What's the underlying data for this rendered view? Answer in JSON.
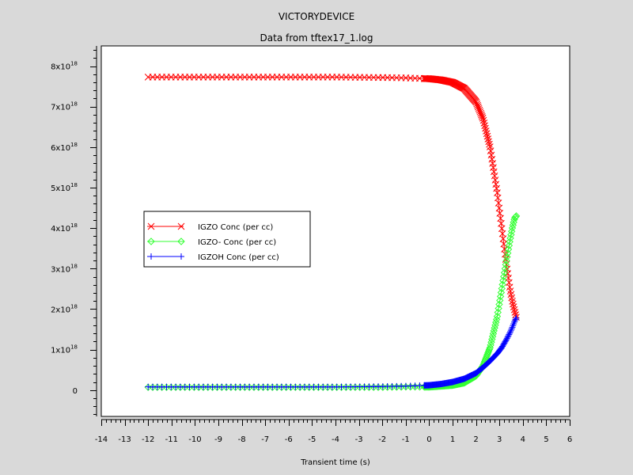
{
  "chart_data": {
    "type": "line",
    "title": "VICTORYDEVICE",
    "subtitle": "Data from tftex17_1.log",
    "xlabel": "Transient time (s)",
    "ylabel": "",
    "xlim": [
      -14,
      6
    ],
    "ylim": [
      -6.5e+17,
      8.5e+18
    ],
    "grid": false,
    "legend_position": "center-left",
    "x_ticks": [
      "-14",
      "-13",
      "-12",
      "-11",
      "-10",
      "-9",
      "-8",
      "-7",
      "-6",
      "-5",
      "-4",
      "-3",
      "-2",
      "-1",
      "0",
      "1",
      "2",
      "3",
      "4",
      "5",
      "6"
    ],
    "y_ticks": [
      {
        "base": "0",
        "exp": ""
      },
      {
        "base": "1x10",
        "exp": "18"
      },
      {
        "base": "2x10",
        "exp": "18"
      },
      {
        "base": "3x10",
        "exp": "18"
      },
      {
        "base": "4x10",
        "exp": "18"
      },
      {
        "base": "5x10",
        "exp": "18"
      },
      {
        "base": "6x10",
        "exp": "18"
      },
      {
        "base": "7x10",
        "exp": "18"
      },
      {
        "base": "8x10",
        "exp": "18"
      }
    ],
    "series": [
      {
        "name": "IGZO Conc (per cc)",
        "color": "#ff0000",
        "marker": "x",
        "x": [
          -12,
          -10,
          -8,
          -6,
          -4,
          -2,
          -1,
          0,
          0.5,
          1,
          1.5,
          2,
          2.3,
          2.6,
          2.9,
          3.1,
          3.3,
          3.45,
          3.55,
          3.65,
          3.72
        ],
        "y": [
          7.73e+18,
          7.73e+18,
          7.73e+18,
          7.73e+18,
          7.73e+18,
          7.72e+18,
          7.71e+18,
          7.69e+18,
          7.66e+18,
          7.6e+18,
          7.45e+18,
          7.12e+18,
          6.7e+18,
          6e+18,
          4.9e+18,
          4e+18,
          3.1e+18,
          2.5e+18,
          2.2e+18,
          1.95e+18,
          1.8e+18
        ]
      },
      {
        "name": "IGZO- Conc (per cc)",
        "color": "#33ff33",
        "marker": "diamond",
        "x": [
          -12,
          -10,
          -8,
          -6,
          -4,
          -2,
          -1,
          0,
          0.5,
          1,
          1.5,
          2,
          2.3,
          2.6,
          2.9,
          3.1,
          3.3,
          3.45,
          3.55,
          3.65,
          3.72
        ],
        "y": [
          7e+16,
          7e+16,
          7e+16,
          7e+16,
          7e+16,
          7e+16,
          8e+16,
          8e+16,
          1e+17,
          1.2e+17,
          1.8e+17,
          3.5e+17,
          6e+17,
          1.05e+18,
          1.8e+18,
          2.5e+18,
          3.2e+18,
          3.7e+18,
          4e+18,
          4.25e+18,
          4.3e+18
        ]
      },
      {
        "name": "IGZOH Conc (per cc)",
        "color": "#0000ff",
        "marker": "plus",
        "x": [
          -12,
          -10,
          -8,
          -6,
          -4,
          -2,
          -1,
          0,
          0.5,
          1,
          1.5,
          2,
          2.3,
          2.6,
          2.9,
          3.1,
          3.3,
          3.45,
          3.55,
          3.65,
          3.72
        ],
        "y": [
          8e+16,
          8e+16,
          8e+16,
          8e+16,
          8e+16,
          9e+16,
          1e+17,
          1.2e+17,
          1.5e+17,
          2e+17,
          2.8e+17,
          4.2e+17,
          5.6e+17,
          7.2e+17,
          9e+17,
          1.05e+18,
          1.25e+18,
          1.42e+18,
          1.55e+18,
          1.7e+18,
          1.78e+18
        ]
      }
    ]
  }
}
